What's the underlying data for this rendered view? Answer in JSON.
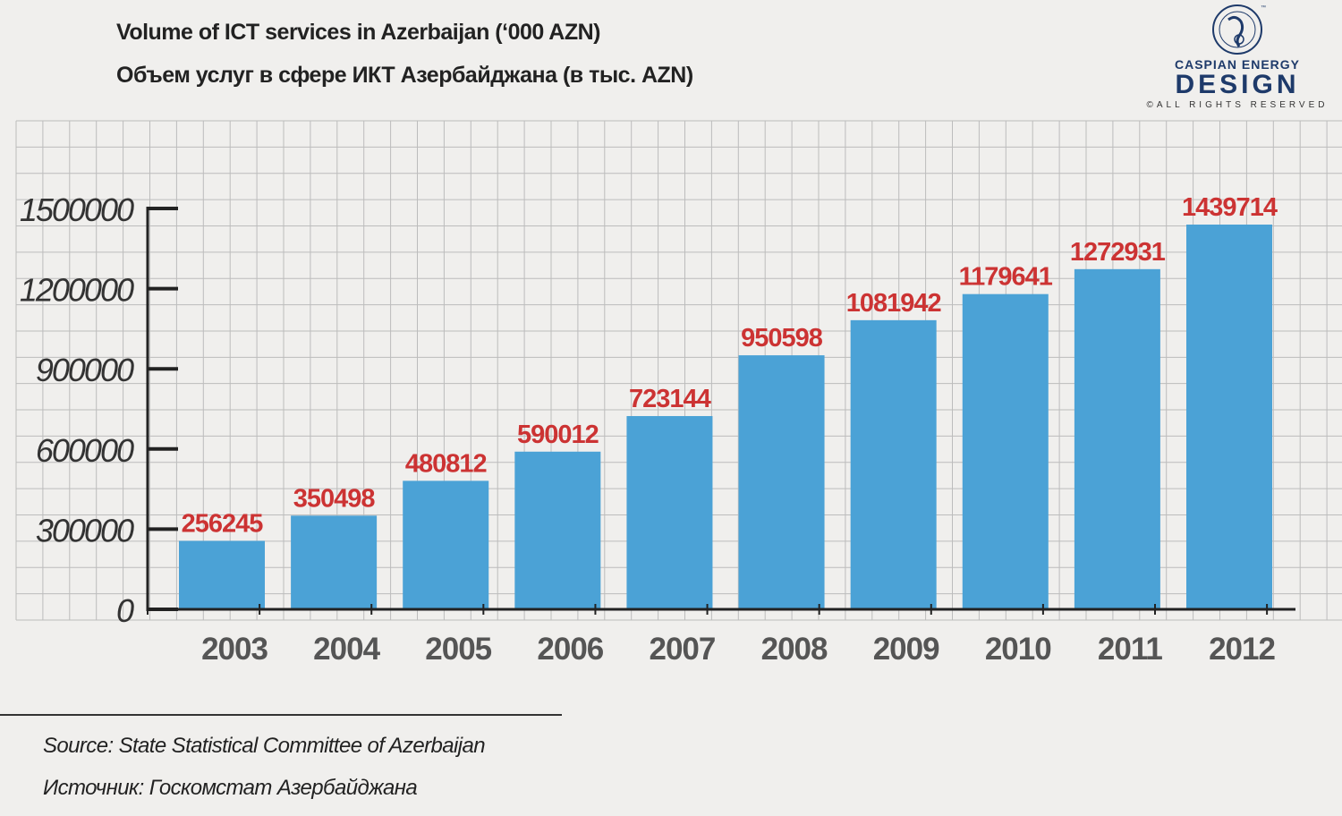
{
  "title_en": "Volume of ICT services in Azerbaijan (‘000 AZN)",
  "title_ru": "Объем услуг в сфере ИКТ Азербайджана (в тыс. AZN)",
  "logo": {
    "top": "CASPIAN ENERGY",
    "main": "DESIGN",
    "rights": "©ALL RIGHTS RESERVED"
  },
  "source_en": "Source: State Statistical Committee of Azerbaijan",
  "source_ru": "Источник: Госкомстат Азербайджана",
  "colors": {
    "bar": "#4ba2d6",
    "label": "#cc3333",
    "axis": "#222222",
    "grid": "#bcbcbc",
    "tick_text": "#333333",
    "category_text": "#555555"
  },
  "chart_data": {
    "type": "bar",
    "title": "Volume of ICT services in Azerbaijan (‘000 AZN)",
    "categories": [
      "2003",
      "2004",
      "2005",
      "2006",
      "2007",
      "2008",
      "2009",
      "2010",
      "2011",
      "2012"
    ],
    "values": [
      256245,
      350498,
      480812,
      590012,
      723144,
      950598,
      1081942,
      1179641,
      1272931,
      1439714
    ],
    "yticks": [
      "0",
      "300000",
      "600000",
      "900000",
      "1200000",
      "1500000"
    ],
    "ylim": [
      0,
      1500000
    ],
    "grid": true,
    "data_labels": true
  }
}
